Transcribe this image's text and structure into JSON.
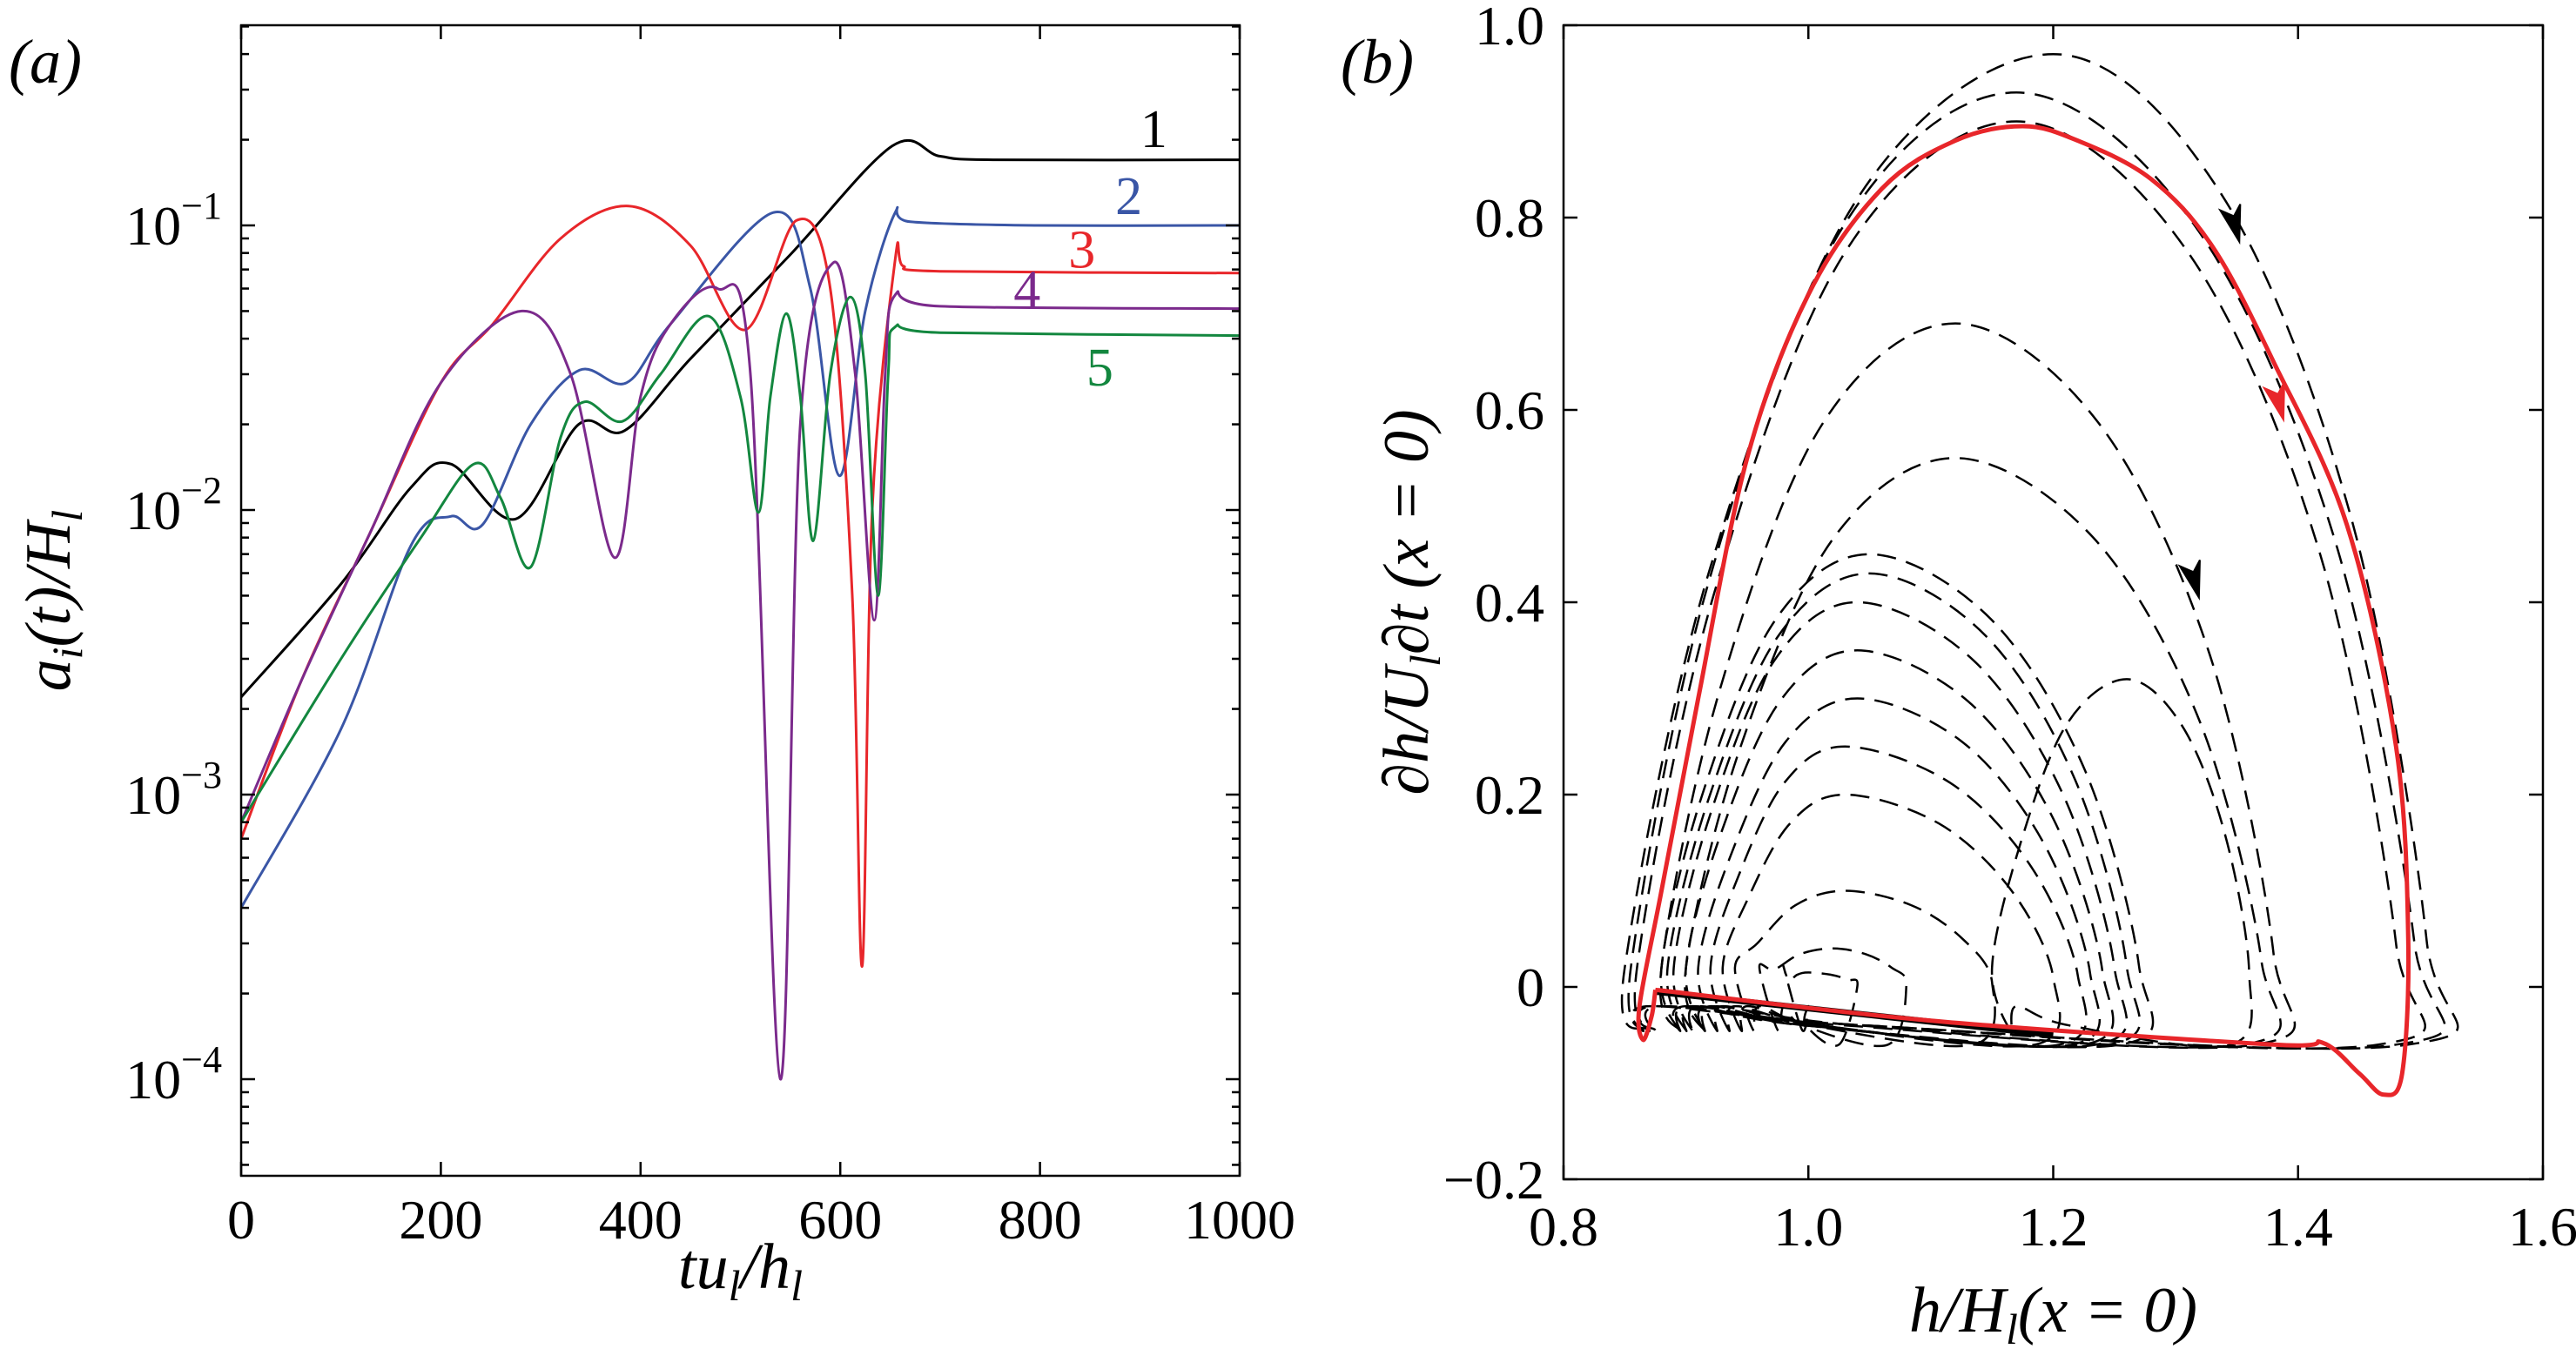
{
  "chart_data": [
    {
      "panel_label": "(a)",
      "type": "line",
      "xlabel_parts": [
        "tu",
        "l",
        "/h",
        "l"
      ],
      "ylabel_parts": [
        "a",
        "i",
        "(t)/H",
        "l"
      ],
      "xlim": [
        0,
        1000
      ],
      "ylim": [
        0.00046,
        0.5
      ],
      "yscale": "log",
      "xticks": [
        "0",
        "200",
        "400",
        "600",
        "800",
        "1000"
      ],
      "xtick_values": [
        0,
        200,
        400,
        600,
        800,
        1000
      ],
      "yticks": [
        {
          "base": "10",
          "exp": "−1",
          "value": 0.1
        },
        {
          "base": "10",
          "exp": "−2",
          "value": 0.01
        },
        {
          "base": "10",
          "exp": "−3",
          "value": 0.001
        },
        {
          "base": "10",
          "exp": "−4",
          "value": 0.0001
        }
      ],
      "grid": false,
      "series": [
        {
          "name": "1",
          "color": "#000000",
          "points": [
            [
              0,
              0.0022
            ],
            [
              100,
              0.0055
            ],
            [
              170,
              0.012
            ],
            [
              210,
              0.0145
            ],
            [
              275,
              0.0093
            ],
            [
              338,
              0.02
            ],
            [
              384,
              0.019
            ],
            [
              450,
              0.034
            ],
            [
              550,
              0.079
            ],
            [
              652,
              0.19
            ],
            [
              700,
              0.175
            ],
            [
              753,
              0.17
            ],
            [
              1000,
              0.17
            ]
          ]
        },
        {
          "name": "2",
          "color": "#3a56a6",
          "points": [
            [
              0,
              0.0004
            ],
            [
              100,
              0.0017
            ],
            [
              170,
              0.0075
            ],
            [
              210,
              0.0095
            ],
            [
              242,
              0.0089
            ],
            [
              290,
              0.02
            ],
            [
              339,
              0.031
            ],
            [
              386,
              0.028
            ],
            [
              430,
              0.045
            ],
            [
              533,
              0.111
            ],
            [
              570,
              0.06
            ],
            [
              599,
              0.0132
            ],
            [
              625,
              0.05
            ],
            [
              655,
              0.111
            ],
            [
              670,
              0.103
            ],
            [
              795,
              0.1
            ],
            [
              1000,
              0.1
            ]
          ]
        },
        {
          "name": "3",
          "color": "#e8262a",
          "points": [
            [
              0,
              0.0007
            ],
            [
              60,
              0.0025
            ],
            [
              129,
              0.0083
            ],
            [
              200,
              0.028
            ],
            [
              252,
              0.045
            ],
            [
              320,
              0.09
            ],
            [
              388,
              0.117
            ],
            [
              450,
              0.085
            ],
            [
              505,
              0.043
            ],
            [
              556,
              0.104
            ],
            [
              590,
              0.06
            ],
            [
              612,
              0.005
            ],
            [
              622,
              0.00025
            ],
            [
              632,
              0.01
            ],
            [
              655,
              0.076
            ],
            [
              663,
              0.072
            ],
            [
              700,
              0.069
            ],
            [
              1000,
              0.068
            ]
          ]
        },
        {
          "name": "4",
          "color": "#7b2a8c",
          "points": [
            [
              0,
              0.0008
            ],
            [
              60,
              0.0025
            ],
            [
              129,
              0.0083
            ],
            [
              200,
              0.028
            ],
            [
              281,
              0.05
            ],
            [
              330,
              0.03
            ],
            [
              374,
              0.0068
            ],
            [
              400,
              0.025
            ],
            [
              430,
              0.045
            ],
            [
              477,
              0.06
            ],
            [
              510,
              0.03
            ],
            [
              540,
              0.0001
            ],
            [
              560,
              0.02
            ],
            [
              593,
              0.074
            ],
            [
              615,
              0.03
            ],
            [
              634,
              0.0041
            ],
            [
              645,
              0.03
            ],
            [
              655,
              0.057
            ],
            [
              700,
              0.052
            ],
            [
              1000,
              0.051
            ]
          ]
        },
        {
          "name": "5",
          "color": "#13873f",
          "points": [
            [
              0,
              0.0008
            ],
            [
              100,
              0.003
            ],
            [
              180,
              0.008
            ],
            [
              233,
              0.0145
            ],
            [
              260,
              0.011
            ],
            [
              290,
              0.0063
            ],
            [
              320,
              0.018
            ],
            [
              344,
              0.024
            ],
            [
              382,
              0.0205
            ],
            [
              420,
              0.03
            ],
            [
              468,
              0.048
            ],
            [
              500,
              0.025
            ],
            [
              518,
              0.0098
            ],
            [
              530,
              0.025
            ],
            [
              546,
              0.049
            ],
            [
              560,
              0.025
            ],
            [
              573,
              0.0078
            ],
            [
              590,
              0.03
            ],
            [
              610,
              0.056
            ],
            [
              625,
              0.03
            ],
            [
              638,
              0.005
            ],
            [
              648,
              0.03
            ],
            [
              655,
              0.044
            ],
            [
              700,
              0.042
            ],
            [
              1000,
              0.041
            ]
          ]
        }
      ]
    },
    {
      "panel_label": "(b)",
      "type": "line",
      "xlabel_parts": [
        "h/H",
        "l",
        "(x = 0)"
      ],
      "ylabel_parts": [
        "∂h/U",
        "l",
        "∂t (x = 0)"
      ],
      "xlim": [
        0.8,
        1.6
      ],
      "ylim": [
        -0.2,
        1.0
      ],
      "xticks": [
        "0.8",
        "1.0",
        "1.2",
        "1.4",
        "1.6"
      ],
      "xtick_values": [
        0.8,
        1.0,
        1.2,
        1.4,
        1.6
      ],
      "yticks": [
        "1.0",
        "0.8",
        "0.6",
        "0.4",
        "0.2",
        "0",
        "−0.2"
      ],
      "ytick_values": [
        1.0,
        0.8,
        0.6,
        0.4,
        0.2,
        0,
        -0.2
      ],
      "grid": false,
      "limit_cycle": {
        "color": "#e8262a",
        "style": "solid",
        "points": [
          [
            0.875,
            -0.003
          ],
          [
            1.1,
            -0.035
          ],
          [
            1.38,
            -0.06
          ],
          [
            1.42,
            -0.058
          ],
          [
            1.45,
            -0.09
          ],
          [
            1.47,
            -0.112
          ],
          [
            1.485,
            -0.09
          ],
          [
            1.49,
            0.05
          ],
          [
            1.48,
            0.25
          ],
          [
            1.44,
            0.48
          ],
          [
            1.38,
            0.65
          ],
          [
            1.33,
            0.77
          ],
          [
            1.28,
            0.84
          ],
          [
            1.22,
            0.88
          ],
          [
            1.175,
            0.895
          ],
          [
            1.12,
            0.88
          ],
          [
            1.06,
            0.83
          ],
          [
            1.0,
            0.72
          ],
          [
            0.95,
            0.55
          ],
          [
            0.91,
            0.3
          ],
          [
            0.88,
            0.1
          ],
          [
            0.862,
            -0.02
          ],
          [
            0.865,
            -0.055
          ],
          [
            0.872,
            -0.03
          ],
          [
            0.875,
            -0.003
          ]
        ]
      },
      "transient": {
        "color": "#000000",
        "style": "dashed",
        "loops": [
          {
            "h_min": 0.85,
            "h_max": 1.505,
            "h_peak": 1.2,
            "peak": 0.97
          },
          {
            "h_min": 0.855,
            "h_max": 1.495,
            "h_peak": 1.17,
            "peak": 0.93
          },
          {
            "h_min": 0.86,
            "h_max": 1.48,
            "h_peak": 1.17,
            "peak": 0.9
          },
          {
            "h_min": 0.88,
            "h_max": 1.38,
            "h_peak": 1.12,
            "peak": 0.69
          },
          {
            "h_min": 0.9,
            "h_max": 1.37,
            "h_peak": 1.12,
            "peak": 0.55
          },
          {
            "h_min": 1.15,
            "h_max": 1.36,
            "h_peak": 1.26,
            "peak": 0.32
          },
          {
            "h_min": 0.88,
            "h_max": 1.27,
            "h_peak": 1.05,
            "peak": 0.45
          },
          {
            "h_min": 0.885,
            "h_max": 1.26,
            "h_peak": 1.05,
            "peak": 0.43
          },
          {
            "h_min": 0.89,
            "h_max": 1.25,
            "h_peak": 1.04,
            "peak": 0.4
          },
          {
            "h_min": 0.9,
            "h_max": 1.24,
            "h_peak": 1.04,
            "peak": 0.35
          },
          {
            "h_min": 0.91,
            "h_max": 1.23,
            "h_peak": 1.04,
            "peak": 0.3
          },
          {
            "h_min": 0.92,
            "h_max": 1.22,
            "h_peak": 1.03,
            "peak": 0.25
          },
          {
            "h_min": 0.93,
            "h_max": 1.2,
            "h_peak": 1.03,
            "peak": 0.2
          },
          {
            "h_min": 0.94,
            "h_max": 1.15,
            "h_peak": 1.03,
            "peak": 0.1
          },
          {
            "h_min": 0.96,
            "h_max": 1.08,
            "h_peak": 1.02,
            "peak": 0.04
          },
          {
            "h_min": 0.98,
            "h_max": 1.04,
            "h_peak": 1.0,
            "peak": 0.015
          }
        ]
      },
      "arrows": [
        {
          "color": "#000000",
          "at": [
            1.347,
            0.805
          ]
        },
        {
          "color": "#000000",
          "at": [
            1.314,
            0.435
          ]
        },
        {
          "color": "#e8262a",
          "at": [
            1.383,
            0.62
          ]
        }
      ]
    }
  ]
}
